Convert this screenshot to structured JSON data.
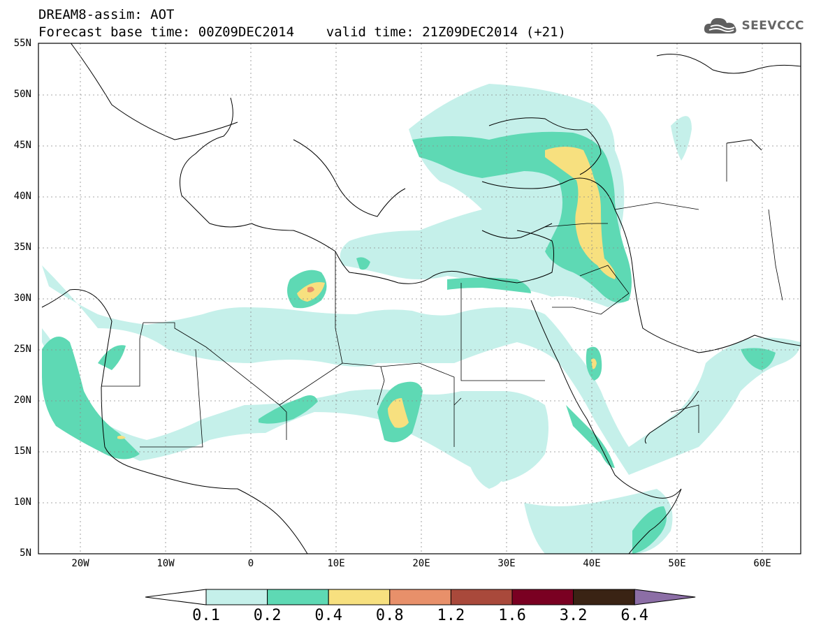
{
  "header": {
    "title_line1": "DREAM8-assim: AOT",
    "title_line2": "Forecast base time: 00Z09DEC2014    valid time: 21Z09DEC2014 (+21)",
    "logo_text": "SEEVCCC"
  },
  "map": {
    "y_ticks": [
      "55N",
      "50N",
      "45N",
      "40N",
      "35N",
      "30N",
      "25N",
      "20N",
      "15N",
      "10N",
      "5N"
    ],
    "x_ticks": [
      "20W",
      "10W",
      "0",
      "10E",
      "20E",
      "30E",
      "40E",
      "50E",
      "60E"
    ]
  },
  "colorbar": {
    "labels": [
      "0.1",
      "0.2",
      "0.4",
      "0.8",
      "1.2",
      "1.6",
      "3.2",
      "6.4"
    ],
    "colors": [
      "#ffffff",
      "#c5f0ea",
      "#5ed9b4",
      "#f7e07f",
      "#e8906a",
      "#a9493b",
      "#7a0022",
      "#3a2314",
      "#8c6ea6"
    ]
  }
}
